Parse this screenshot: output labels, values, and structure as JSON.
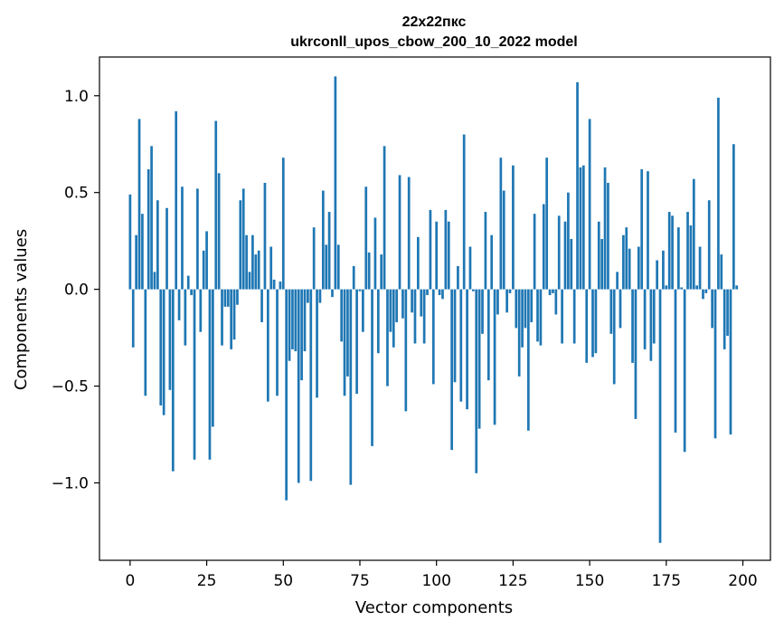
{
  "chart_data": {
    "type": "bar",
    "title": "22x22пкс",
    "subtitle": "ukrconll_upos_cbow_200_10_2022 model",
    "xlabel": "Vector components",
    "ylabel": "Components values",
    "xlim": [
      -10,
      209
    ],
    "ylim": [
      -1.4,
      1.2
    ],
    "x_ticks": [
      0,
      25,
      50,
      75,
      100,
      125,
      150,
      175,
      200
    ],
    "y_ticks": [
      -1.0,
      -0.5,
      0.0,
      0.5,
      1.0
    ],
    "x_tick_labels": [
      "0",
      "25",
      "50",
      "75",
      "100",
      "125",
      "150",
      "175",
      "200"
    ],
    "y_tick_labels": [
      "−1.0",
      "−0.5",
      "0.0",
      "0.5",
      "1.0"
    ],
    "grid": false,
    "bar_color": "#1f77b4",
    "values": [
      0.49,
      -0.3,
      0.28,
      0.88,
      0.39,
      -0.55,
      0.62,
      0.74,
      0.09,
      0.46,
      -0.6,
      -0.65,
      0.42,
      -0.52,
      -0.94,
      0.92,
      -0.16,
      0.53,
      -0.29,
      0.07,
      -0.03,
      -0.88,
      0.52,
      -0.22,
      0.2,
      0.3,
      -0.88,
      -0.71,
      0.87,
      0.6,
      -0.29,
      -0.09,
      -0.09,
      -0.31,
      -0.26,
      -0.08,
      0.46,
      0.52,
      0.28,
      0.09,
      0.28,
      0.18,
      0.2,
      -0.17,
      0.55,
      -0.58,
      0.22,
      0.05,
      -0.55,
      0.04,
      0.68,
      -1.09,
      -0.37,
      -0.31,
      -0.32,
      -1.0,
      -0.47,
      -0.32,
      -0.07,
      -0.99,
      0.32,
      -0.56,
      -0.07,
      0.51,
      0.23,
      0.4,
      -0.04,
      1.1,
      0.23,
      -0.27,
      -0.55,
      -0.45,
      -1.01,
      0.12,
      -0.54,
      -0.01,
      -0.22,
      0.53,
      0.19,
      -0.81,
      0.37,
      -0.33,
      0.18,
      0.74,
      -0.5,
      -0.22,
      -0.3,
      -0.17,
      0.59,
      -0.15,
      -0.63,
      0.58,
      -0.12,
      -0.28,
      0.27,
      -0.14,
      -0.28,
      -0.03,
      0.41,
      -0.49,
      0.35,
      -0.03,
      -0.05,
      0.41,
      0.35,
      -0.83,
      -0.48,
      0.12,
      -0.58,
      0.8,
      -0.62,
      0.22,
      -0.01,
      -0.95,
      -0.72,
      -0.23,
      0.4,
      -0.47,
      0.28,
      -0.7,
      -0.13,
      0.68,
      0.51,
      -0.12,
      -0.02,
      0.64,
      -0.2,
      -0.45,
      -0.3,
      -0.2,
      -0.73,
      -0.17,
      0.39,
      -0.27,
      -0.29,
      0.44,
      0.68,
      -0.03,
      -0.02,
      -0.13,
      0.38,
      -0.28,
      0.35,
      0.5,
      0.26,
      -0.28,
      1.07,
      0.63,
      0.64,
      -0.38,
      0.88,
      -0.35,
      -0.33,
      0.35,
      0.26,
      0.63,
      0.55,
      -0.23,
      -0.49,
      0.09,
      -0.2,
      0.28,
      0.32,
      0.21,
      -0.38,
      -0.67,
      0.22,
      0.62,
      -0.31,
      0.61,
      -0.37,
      -0.28,
      0.15,
      -1.31,
      0.2,
      0.02,
      0.4,
      0.38,
      -0.74,
      0.32,
      0.01,
      -0.84,
      0.4,
      0.33,
      0.57,
      0.02,
      0.22,
      -0.05,
      -0.02,
      0.46,
      -0.2,
      -0.77,
      0.99,
      0.18,
      -0.31,
      -0.24,
      -0.75,
      0.75,
      0.02
    ]
  }
}
